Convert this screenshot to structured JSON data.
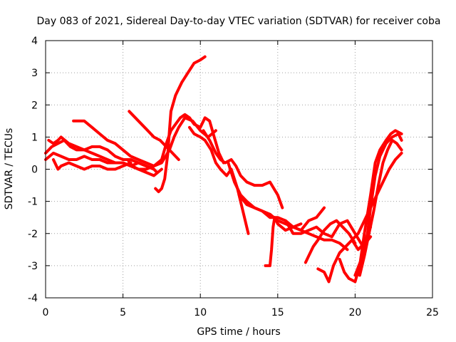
{
  "chart_data": {
    "type": "scatter",
    "title": "Day 083 of 2021, Sidereal Day-to-day VTEC variation (SDTVAR) for receiver coba",
    "xlabel": "GPS time / hours",
    "ylabel": "SDTVAR / TECUs",
    "xlim": [
      0,
      25
    ],
    "ylim": [
      -4,
      4
    ],
    "xticks": [
      0,
      5,
      10,
      15,
      20,
      25
    ],
    "yticks": [
      -4,
      -3,
      -2,
      -1,
      0,
      1,
      2,
      3,
      4
    ],
    "grid": true,
    "legend": "none",
    "marker_color": "#ff0000",
    "series": [
      {
        "x": [
          0.0,
          0.4,
          0.8,
          1.2,
          1.6,
          2.0,
          2.5,
          3.0,
          3.5,
          4.0,
          4.5,
          5.0,
          5.5,
          6.0,
          6.5,
          7.0,
          7.2
        ],
        "y": [
          0.5,
          0.7,
          0.8,
          0.9,
          0.7,
          0.6,
          0.6,
          0.7,
          0.7,
          0.6,
          0.4,
          0.3,
          0.3,
          0.2,
          0.1,
          0.0,
          -0.1
        ]
      },
      {
        "x": [
          0.0,
          0.5,
          1.0,
          1.5,
          2.0,
          2.5,
          3.0,
          3.5,
          4.0,
          4.5,
          5.0,
          5.5,
          6.0,
          6.5,
          7.0
        ],
        "y": [
          0.3,
          0.5,
          0.4,
          0.3,
          0.3,
          0.4,
          0.3,
          0.3,
          0.2,
          0.2,
          0.2,
          0.1,
          0.2,
          0.1,
          0.0
        ]
      },
      {
        "x": [
          0.2,
          0.5,
          0.8,
          1.0,
          1.5,
          2.0,
          2.5,
          3.0,
          3.5,
          4.0,
          4.5,
          5.0,
          5.5,
          6.0,
          6.5,
          7.0,
          7.5
        ],
        "y": [
          0.9,
          0.8,
          0.9,
          1.0,
          0.8,
          0.7,
          0.6,
          0.5,
          0.4,
          0.3,
          0.2,
          0.2,
          0.1,
          0.0,
          -0.1,
          -0.2,
          0.0
        ]
      },
      {
        "x": [
          0.5,
          0.8,
          1.0,
          1.5,
          2.0,
          2.5,
          3.0,
          3.5,
          4.0,
          4.5,
          5.0,
          5.5
        ],
        "y": [
          0.3,
          0.0,
          0.1,
          0.2,
          0.1,
          0.0,
          0.1,
          0.1,
          0.0,
          0.0,
          0.1,
          0.2
        ]
      },
      {
        "x": [
          1.8,
          2.5,
          3.0,
          3.5,
          4.0,
          4.5,
          5.0,
          5.5,
          6.0,
          6.5,
          7.0,
          7.5
        ],
        "y": [
          1.5,
          1.5,
          1.3,
          1.1,
          0.9,
          0.8,
          0.6,
          0.4,
          0.3,
          0.2,
          0.1,
          0.3
        ]
      },
      {
        "x": [
          5.3,
          5.6,
          6.0,
          6.5,
          7.0,
          7.5,
          8.0,
          8.3,
          8.6,
          9.0,
          9.5,
          10.0,
          10.5,
          11.0
        ],
        "y": [
          0.3,
          0.1,
          0.0,
          0.0,
          0.1,
          0.2,
          0.6,
          1.0,
          1.3,
          1.6,
          1.5,
          1.2,
          1.0,
          1.2
        ]
      },
      {
        "x": [
          5.4,
          5.8,
          6.2,
          6.6,
          7.0,
          7.4,
          7.8,
          8.2,
          8.6
        ],
        "y": [
          1.8,
          1.6,
          1.4,
          1.2,
          1.0,
          0.9,
          0.7,
          0.5,
          0.3
        ]
      },
      {
        "x": [
          7.1,
          7.3,
          7.5,
          7.7,
          7.9,
          8.0,
          8.1,
          8.4,
          8.8,
          9.2,
          9.6,
          10.0,
          10.3
        ],
        "y": [
          -0.6,
          -0.7,
          -0.6,
          -0.3,
          0.5,
          1.2,
          1.8,
          2.3,
          2.7,
          3.0,
          3.3,
          3.4,
          3.5
        ]
      },
      {
        "x": [
          7.5,
          7.8,
          8.1,
          8.4,
          8.7,
          9.0,
          9.3,
          9.6,
          10.0,
          10.3,
          10.6,
          10.9,
          11.2,
          11.5
        ],
        "y": [
          0.3,
          0.8,
          1.2,
          1.4,
          1.6,
          1.7,
          1.6,
          1.4,
          1.3,
          1.6,
          1.5,
          1.0,
          0.5,
          0.2
        ]
      },
      {
        "x": [
          9.3,
          9.6,
          10.0,
          10.3,
          10.7,
          11.0,
          11.3,
          11.7,
          12.0,
          12.4,
          12.8,
          13.1
        ],
        "y": [
          1.3,
          1.1,
          1.0,
          0.9,
          0.6,
          0.2,
          0.0,
          -0.2,
          0.0,
          -0.6,
          -1.4,
          -2.0
        ]
      },
      {
        "x": [
          10.2,
          10.6,
          11.0,
          11.3,
          11.6,
          12.0,
          12.3,
          12.6,
          13.0,
          13.5,
          14.0,
          14.5,
          15.0,
          15.3
        ],
        "y": [
          1.2,
          0.9,
          0.5,
          0.3,
          0.2,
          0.3,
          0.1,
          -0.2,
          -0.4,
          -0.5,
          -0.5,
          -0.4,
          -0.8,
          -1.2
        ]
      },
      {
        "x": [
          11.8,
          12.2,
          12.6,
          13.0,
          13.5,
          14.0,
          14.5,
          15.0,
          15.5,
          16.0,
          16.5,
          17.0,
          17.5,
          18.0,
          18.5,
          19.0,
          19.5
        ],
        "y": [
          0.2,
          -0.4,
          -0.8,
          -1.0,
          -1.2,
          -1.3,
          -1.4,
          -1.6,
          -1.7,
          -1.8,
          -1.9,
          -2.0,
          -2.1,
          -2.2,
          -2.2,
          -2.3,
          -2.5
        ]
      },
      {
        "x": [
          12.5,
          13.0,
          13.5,
          14.0,
          14.5,
          15.0,
          15.5,
          16.0,
          16.5,
          17.0,
          17.5,
          18.0
        ],
        "y": [
          -0.8,
          -1.1,
          -1.2,
          -1.3,
          -1.5,
          -1.5,
          -1.6,
          -1.8,
          -1.9,
          -1.6,
          -1.5,
          -1.2
        ]
      },
      {
        "x": [
          14.2,
          14.5,
          14.6,
          14.7,
          14.8,
          15.0,
          15.5,
          16.0,
          16.5
        ],
        "y": [
          -3.0,
          -3.0,
          -2.5,
          -1.8,
          -1.5,
          -1.7,
          -1.9,
          -1.8,
          -1.7
        ]
      },
      {
        "x": [
          15.5,
          16.0,
          16.5,
          17.0,
          17.5,
          18.0,
          18.5,
          19.0,
          19.5,
          20.0,
          20.5,
          21.0
        ],
        "y": [
          -1.6,
          -2.0,
          -2.0,
          -1.9,
          -1.8,
          -2.0,
          -2.1,
          -1.7,
          -1.6,
          -2.0,
          -2.4,
          -2.1
        ]
      },
      {
        "x": [
          16.8,
          17.0,
          17.3,
          17.6,
          18.0,
          18.4,
          18.8,
          19.2,
          19.6,
          20.0
        ],
        "y": [
          -2.9,
          -2.7,
          -2.4,
          -2.2,
          -1.9,
          -1.7,
          -1.6,
          -1.8,
          -2.0,
          -2.3
        ]
      },
      {
        "x": [
          17.6,
          18.0,
          18.3,
          18.6,
          19.0,
          19.4,
          19.8,
          20.2,
          20.6,
          21.0
        ],
        "y": [
          -3.1,
          -3.2,
          -3.5,
          -3.0,
          -2.6,
          -2.4,
          -2.2,
          -2.5,
          -2.3,
          -1.8
        ]
      },
      {
        "x": [
          19.0,
          19.3,
          19.6,
          20.0,
          20.3,
          20.6,
          21.0,
          21.3,
          21.6,
          22.0,
          22.3,
          22.6,
          23.0
        ],
        "y": [
          -2.8,
          -3.2,
          -3.4,
          -3.5,
          -3.0,
          -2.0,
          -0.8,
          0.2,
          0.6,
          0.9,
          1.1,
          1.2,
          1.1
        ]
      },
      {
        "x": [
          20.0,
          20.4,
          20.8,
          21.0,
          21.3,
          21.6,
          22.0,
          22.4,
          22.8,
          23.0
        ],
        "y": [
          -3.3,
          -2.8,
          -2.0,
          -1.2,
          -0.2,
          0.4,
          0.8,
          1.0,
          1.1,
          0.9
        ]
      },
      {
        "x": [
          20.3,
          20.6,
          20.9,
          21.2,
          21.5,
          21.8,
          22.1,
          22.4,
          22.7,
          23.0
        ],
        "y": [
          -3.3,
          -2.7,
          -2.0,
          -1.3,
          -0.5,
          0.2,
          0.6,
          0.9,
          0.8,
          0.6
        ]
      },
      {
        "x": [
          19.8,
          20.2,
          20.6,
          21.0,
          21.4,
          21.8,
          22.2,
          22.6,
          23.0
        ],
        "y": [
          -2.2,
          -2.0,
          -1.6,
          -1.2,
          -0.8,
          -0.4,
          0.0,
          0.3,
          0.5
        ]
      }
    ]
  }
}
